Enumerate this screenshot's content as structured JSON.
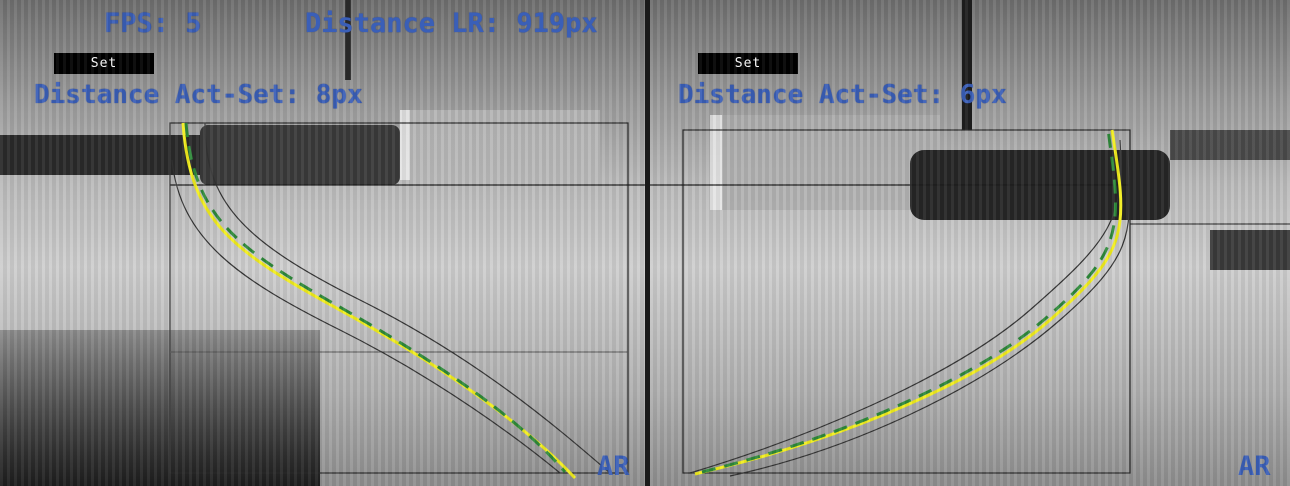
{
  "hud": {
    "fps_label": "FPS: 5",
    "distance_lr_label": "Distance LR: 919px",
    "left": {
      "set_button_label": "Set",
      "distance_act_set_label": "Distance Act-Set: 8px",
      "corner_mark": "AR"
    },
    "right": {
      "set_button_label": "Set",
      "distance_act_set_label": "Distance Act-Set: 6px",
      "corner_mark": "AR"
    }
  },
  "colors": {
    "hud_text": "#3a5fb8",
    "actual_curve": "#f2ee1e",
    "set_curve": "#2f8a3a",
    "tolerance_band": "#3a3a3a",
    "roi_box": "#2a2a2a"
  }
}
